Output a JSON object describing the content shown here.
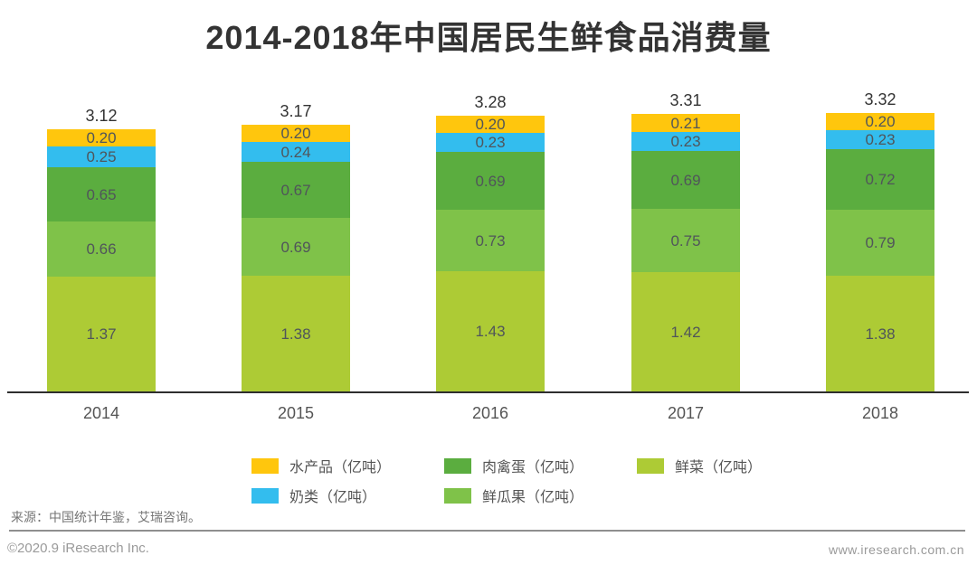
{
  "title": "2014-2018年中国居民生鲜食品消费量",
  "chart_data": {
    "type": "bar",
    "stacked": true,
    "unit": "亿吨",
    "categories": [
      "2014",
      "2015",
      "2016",
      "2017",
      "2018"
    ],
    "totals": [
      3.12,
      3.17,
      3.28,
      3.31,
      3.32
    ],
    "series": [
      {
        "id": "fresh-vegetable",
        "name": "鲜菜（亿吨）",
        "color": "#adcb35",
        "values": [
          1.37,
          1.38,
          1.43,
          1.42,
          1.38
        ]
      },
      {
        "id": "fresh-fruit",
        "name": "鲜瓜果（亿吨）",
        "color": "#7fc249",
        "values": [
          0.66,
          0.69,
          0.73,
          0.75,
          0.79
        ]
      },
      {
        "id": "meat-poultry-egg",
        "name": "肉禽蛋（亿吨）",
        "color": "#5bad3f",
        "values": [
          0.65,
          0.67,
          0.69,
          0.69,
          0.72
        ]
      },
      {
        "id": "dairy",
        "name": "奶类（亿吨）",
        "color": "#33bdee",
        "values": [
          0.25,
          0.24,
          0.23,
          0.23,
          0.23
        ]
      },
      {
        "id": "aquatic",
        "name": "水产品（亿吨）",
        "color": "#ffc60d",
        "values": [
          0.2,
          0.2,
          0.2,
          0.21,
          0.2
        ]
      }
    ],
    "stack_order_top_to_bottom": [
      "水产品",
      "奶类",
      "肉禽蛋",
      "鲜瓜果",
      "鲜菜"
    ],
    "ylim": [
      0,
      3.5
    ],
    "grid": false,
    "legend_position": "bottom"
  },
  "legend": {
    "items": [
      {
        "id": "aquatic",
        "label": "水产品（亿吨）",
        "color": "#ffc60d"
      },
      {
        "id": "meat-poultry-egg",
        "label": "肉禽蛋（亿吨）",
        "color": "#5bad3f"
      },
      {
        "id": "fresh-vegetable",
        "label": "鲜菜（亿吨）",
        "color": "#adcb35"
      },
      {
        "id": "dairy",
        "label": "奶类（亿吨）",
        "color": "#33bdee"
      },
      {
        "id": "fresh-fruit",
        "label": "鲜瓜果（亿吨）",
        "color": "#7fc249"
      }
    ]
  },
  "footer": {
    "source": "来源：中国统计年鉴，艾瑞咨询。",
    "copyright": "©2020.9 iResearch Inc.",
    "website": "www.iresearch.com.cn"
  }
}
